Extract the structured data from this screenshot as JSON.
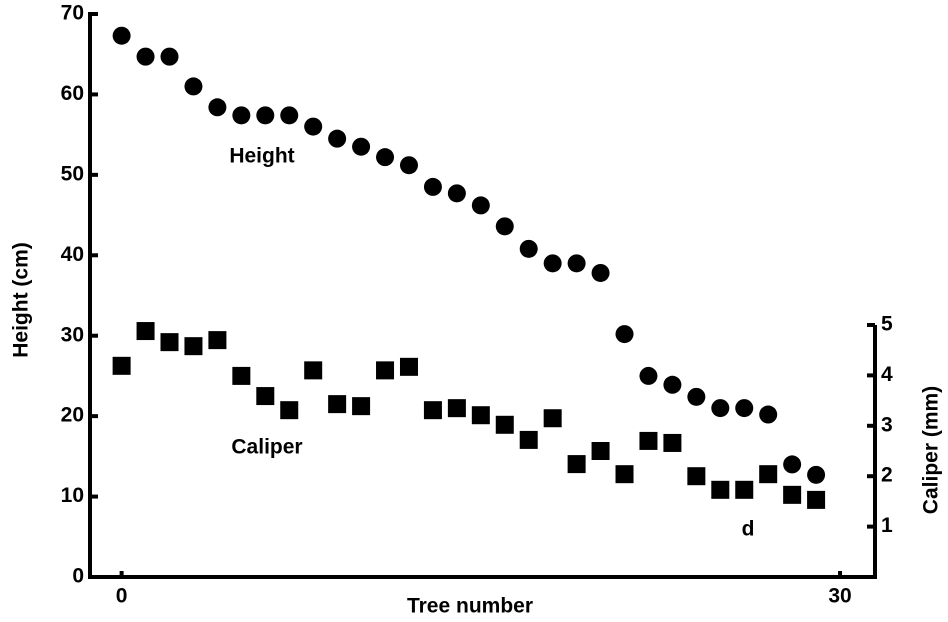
{
  "chart_data": {
    "type": "scatter",
    "x_label": "Tree number",
    "y_label": "Height  (cm)",
    "y2_label": "Caliper  (mm)",
    "annotations": [
      "Height",
      "Caliper",
      "d"
    ],
    "x": [
      0,
      1,
      2,
      3,
      4,
      5,
      6,
      7,
      8,
      9,
      10,
      11,
      12,
      13,
      14,
      15,
      16,
      17,
      18,
      19,
      20,
      21,
      22,
      23,
      24,
      25,
      26,
      27,
      28,
      29
    ],
    "series": [
      {
        "name": "Height",
        "marker": "circle",
        "color": "#000000",
        "values": [
          67.3,
          64.7,
          64.7,
          61,
          58.4,
          57.4,
          57.4,
          57.4,
          56,
          54.5,
          53.5,
          52.2,
          51.2,
          48.5,
          47.7,
          46.2,
          43.6,
          40.8,
          39,
          39,
          37.8,
          30.2,
          25,
          23.9,
          22.4,
          21,
          21,
          20.2,
          14,
          12.7
        ]
      },
      {
        "name": "Caliper",
        "marker": "square",
        "color": "#000000",
        "axis": "y2",
        "values": [
          4.19,
          4.88,
          4.66,
          4.58,
          4.7,
          3.99,
          3.59,
          3.31,
          4.1,
          3.43,
          3.39,
          4.1,
          4.17,
          3.31,
          3.35,
          3.21,
          3.02,
          2.72,
          3.15,
          2.24,
          2.5,
          2.04,
          2.7,
          2.66,
          2.0,
          1.73,
          1.73,
          2.04,
          1.63,
          1.53
        ]
      }
    ],
    "xlim": [
      -1.32,
      31.46
    ],
    "xticks": [
      0,
      30
    ],
    "ylim": [
      0,
      70
    ],
    "yticks": [
      0,
      10,
      20,
      30,
      40,
      50,
      60,
      70
    ],
    "y2lim": [
      0,
      5
    ],
    "y2ticks": [
      1,
      2,
      3,
      4,
      5
    ]
  }
}
